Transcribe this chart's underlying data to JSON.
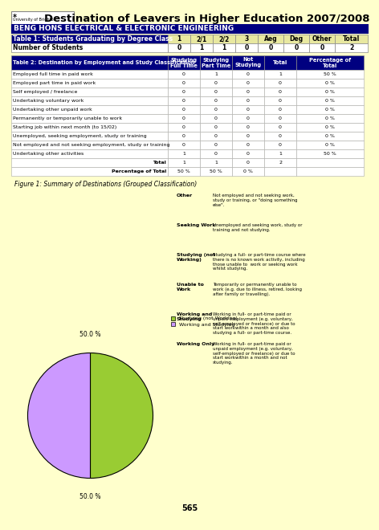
{
  "title": "Destination of Leavers in Higher Education 2007/2008",
  "bg_color": "#FFFFCC",
  "dept_header": "BENG HONS ELECTRICAL & ELECTRONIC ENGINEERING",
  "dept_header_bg": "#000080",
  "dept_header_fg": "#FFFFFF",
  "table1_header": "Table 1: Students Graduating by Degree Class",
  "table1_cols": [
    "1",
    "2/1",
    "2/2",
    "3",
    "Aeg",
    "Deg",
    "Other",
    "Total"
  ],
  "table1_values": [
    "0",
    "1",
    "1",
    "0",
    "0",
    "0",
    "0",
    "2"
  ],
  "table2_header": "Table 2: Destination by Employment and Study Classification",
  "table2_col_headers": [
    "Studying\nFull Time",
    "Studying\nPart Time",
    "Not\nStudying",
    "Total",
    "Percentage of\nTotal"
  ],
  "table2_rows": [
    [
      "Employed full time in paid work",
      "0",
      "1",
      "0",
      "1",
      "50 %"
    ],
    [
      "Employed part time in paid work",
      "0",
      "0",
      "0",
      "0",
      "0 %"
    ],
    [
      "Self employed / freelance",
      "0",
      "0",
      "0",
      "0",
      "0 %"
    ],
    [
      "Undertaking voluntary work",
      "0",
      "0",
      "0",
      "0",
      "0 %"
    ],
    [
      "Undertaking other unpaid work",
      "0",
      "0",
      "0",
      "0",
      "0 %"
    ],
    [
      "Permanently or temporarily unable to work",
      "0",
      "0",
      "0",
      "0",
      "0 %"
    ],
    [
      "Starting job within next month (to 15/02)",
      "0",
      "0",
      "0",
      "0",
      "0 %"
    ],
    [
      "Unemployed, seeking employment, study or training",
      "0",
      "0",
      "0",
      "0",
      "0 %"
    ],
    [
      "Not employed and not seeking employment, study or training",
      "0",
      "0",
      "0",
      "0",
      "0 %"
    ],
    [
      "Undertaking other activities",
      "1",
      "0",
      "0",
      "1",
      "50 %"
    ]
  ],
  "table2_total": [
    "Total",
    "1",
    "1",
    "0",
    "2",
    ""
  ],
  "table2_pct": [
    "Percentage of Total",
    "50 %",
    "50 %",
    "0 %",
    "",
    ""
  ],
  "pie_slices": [
    50.0,
    50.0
  ],
  "pie_colors": [
    "#99CC33",
    "#CC99FF"
  ],
  "pie_legend": [
    "Studying (not Working)",
    "Working and Studying"
  ],
  "figure_title": "Figure 1: Summary of Destinations (Grouped Classification)",
  "legend_items": [
    [
      "Other",
      "Not employed and not seeking work,\nstudy or training, or \"doing something\nelse\"."
    ],
    [
      "Seeking Work",
      "Unemployed and seeking work, study or\ntraining and not studying."
    ],
    [
      "Studying (not\nWorking)",
      "Studying a full- or part-time course where\nthere is no known work activity, including\nthose unable to  work or seeking work\nwhilst studying."
    ],
    [
      "Unable to\nWork",
      "Temporarily or permanently unable to\nwork (e.g. due to illness, retired, looking\nafter family or travelling)."
    ],
    [
      "Working and\nStudying",
      "Working in full- or part-time paid or\nunpaid employment (e.g. voluntary,\nself-employed or freelance) or due to\nstart workwithin a month and also\nstudying a full- or part-time course."
    ],
    [
      "Working Only",
      "Working in full- or part-time paid or\nunpaid employment (e.g. voluntary,\nself-employed or freelance) or due to\nstart workwithin a month and not\nstudying."
    ]
  ],
  "page_number": "565"
}
